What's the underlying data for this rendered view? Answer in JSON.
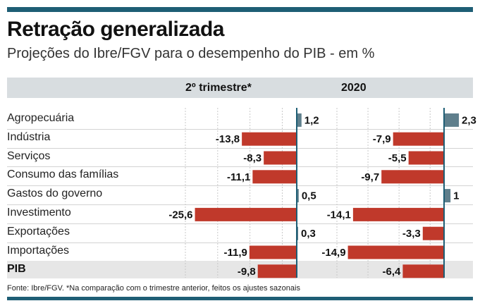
{
  "header": {
    "title": "Retração generalizada",
    "subtitle": "Projeções do Ibre/FGV para o desempenho do PIB - em %"
  },
  "footer": {
    "source": "Fonte: Ibre/FGV. *Na comparação com o trimestre anterior, feitos os ajustes sazonais"
  },
  "colors": {
    "negative": "#c0392b",
    "positive": "#5f7f8c",
    "accent_bar": "#1e5e75"
  },
  "chart_data": {
    "type": "bar",
    "orientation": "horizontal",
    "title": "Retração generalizada",
    "subtitle": "Projeções do Ibre/FGV para o desempenho do PIB - em %",
    "categories": [
      "Agropecuária",
      "Indústria",
      "Serviços",
      "Consumo das famílias",
      "Gastos do governo",
      "Investimento",
      "Exportações",
      "Importações",
      "PIB"
    ],
    "value_labels": [
      [
        "1,2",
        "-13,8",
        "-8,3",
        "-11,1",
        "0,5",
        "-25,6",
        "0,3",
        "-11,9",
        "-9,8"
      ],
      [
        "2,3",
        "-7,9",
        "-5,5",
        "-9,7",
        "1",
        "-14,1",
        "-3,3",
        "-14,9",
        "-6,4"
      ]
    ],
    "series": [
      {
        "name": "2º trimestre*",
        "values": [
          1.2,
          -13.8,
          -8.3,
          -11.1,
          0.5,
          -25.6,
          0.3,
          -11.9,
          -9.8
        ]
      },
      {
        "name": "2020",
        "values": [
          2.3,
          -7.9,
          -5.5,
          -9.7,
          1,
          -14.1,
          -3.3,
          -14.9,
          -6.4
        ]
      }
    ],
    "gridlines": true
  }
}
